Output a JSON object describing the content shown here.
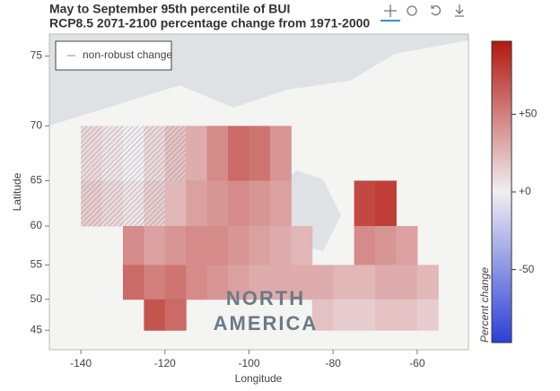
{
  "chart_data": {
    "type": "heatmap",
    "title": "May to September 95th percentile of BUI",
    "subtitle": "RCP8.5 2071-2100 percentage change from 1971-2000",
    "x_label": "Longitude",
    "y_label": "Latitude",
    "y_scale": "mercator",
    "xlim": [
      -147.5,
      -47.8
    ],
    "ylim": [
      41.6,
      76.3
    ],
    "xticks": [
      -140,
      -120,
      -100,
      -80,
      -60
    ],
    "yticks": [
      45,
      50,
      55,
      60,
      65,
      70,
      75
    ],
    "x_edges": [
      -140,
      -135,
      -130,
      -125,
      -120,
      -115,
      -110,
      -105,
      -100,
      -95,
      -90,
      -85,
      -80,
      -75,
      -70,
      -65,
      -60,
      -55
    ],
    "y_edges": [
      70,
      65,
      60,
      55,
      50,
      45
    ],
    "z": [
      [
        10,
        5,
        0,
        10,
        20,
        30,
        45,
        60,
        55,
        40,
        null,
        null,
        null,
        null,
        null,
        null,
        null
      ],
      [
        15,
        10,
        5,
        15,
        25,
        35,
        40,
        45,
        40,
        35,
        null,
        null,
        null,
        75,
        80,
        null,
        null
      ],
      [
        null,
        null,
        45,
        35,
        40,
        45,
        45,
        40,
        35,
        30,
        25,
        null,
        null,
        45,
        40,
        35,
        null
      ],
      [
        null,
        null,
        60,
        50,
        55,
        45,
        40,
        35,
        30,
        30,
        30,
        30,
        25,
        25,
        30,
        30,
        25
      ],
      [
        null,
        null,
        null,
        70,
        60,
        null,
        null,
        null,
        null,
        null,
        null,
        20,
        15,
        15,
        20,
        20,
        15
      ]
    ],
    "non_robust": [
      [
        true,
        true,
        true,
        true,
        true,
        false,
        false,
        false,
        false,
        false,
        false,
        false,
        false,
        false,
        false,
        false,
        false
      ],
      [
        true,
        true,
        true,
        true,
        false,
        false,
        false,
        false,
        false,
        false,
        false,
        false,
        false,
        false,
        false,
        false,
        false
      ],
      [
        false,
        false,
        false,
        false,
        false,
        false,
        false,
        false,
        false,
        false,
        false,
        false,
        false,
        false,
        false,
        false,
        false
      ],
      [
        false,
        false,
        false,
        false,
        false,
        false,
        false,
        false,
        false,
        false,
        false,
        false,
        false,
        false,
        false,
        false,
        false
      ],
      [
        false,
        false,
        false,
        false,
        false,
        false,
        false,
        false,
        false,
        false,
        false,
        false,
        false,
        false,
        false,
        false,
        false
      ]
    ],
    "legend": "non-robust change",
    "basemap_label": [
      "NORTH",
      "AMERICA"
    ],
    "colorbar": {
      "label": "Percent change",
      "clim": [
        -97,
        97
      ],
      "colors": [
        "#2a3fd6",
        "#f1eef2",
        "#b3180f"
      ],
      "ticks": [
        {
          "value": 50,
          "label": "+50"
        },
        {
          "value": 0,
          "label": "+0"
        },
        {
          "value": -50,
          "label": "-50"
        }
      ]
    }
  }
}
